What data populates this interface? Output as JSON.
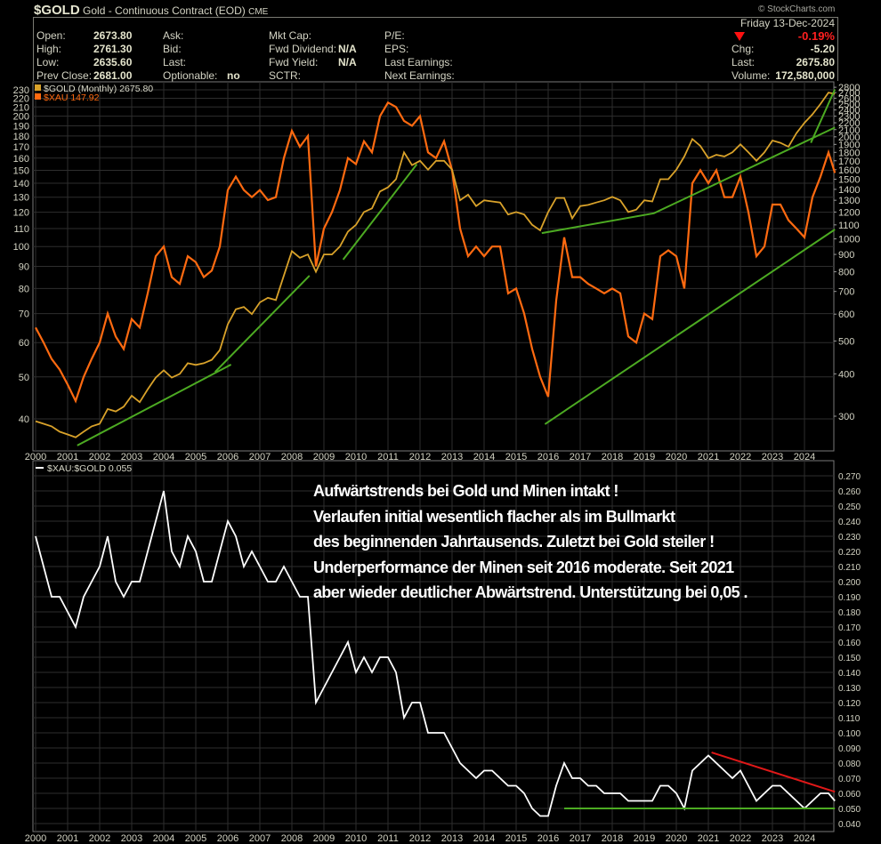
{
  "header": {
    "symbol": "$GOLD",
    "name": "Gold - Continuous Contract (EOD)",
    "exchange": "CME",
    "copyright": "© StockCharts.com",
    "date": "Friday  13-Dec-2024",
    "change_pct": "-0.19%",
    "direction_icon": "down-triangle-icon",
    "fields": {
      "open_label": "Open:",
      "open": "2673.80",
      "high_label": "High:",
      "high": "2761.30",
      "low_label": "Low:",
      "low": "2635.60",
      "prev_close_label": "Prev Close:",
      "prev_close": "2681.00",
      "ask_label": "Ask:",
      "bid_label": "Bid:",
      "last_mid_label": "Last:",
      "optionable_label": "Optionable:",
      "optionable": "no",
      "mkt_cap_label": "Mkt Cap:",
      "fwd_dividend_label": "Fwd Dividend:",
      "fwd_dividend": "N/A",
      "fwd_yield_label": "Fwd Yield:",
      "fwd_yield": "N/A",
      "sctr_label": "SCTR:",
      "pe_label": "P/E:",
      "eps_label": "EPS:",
      "last_earnings_label": "Last Earnings:",
      "next_earnings_label": "Next Earnings:",
      "chg_label": "Chg:",
      "chg": "-5.20",
      "last_label": "Last:",
      "last": "2675.80",
      "volume_label": "Volume:",
      "volume": "172,580,000"
    }
  },
  "annotation": [
    "Aufwärtstrends bei Gold und Minen intakt !",
    "Verlaufen initial wesentlich flacher als im Bullmarkt",
    "des beginnenden Jahrtausends. Zuletzt bei Gold steiler  !",
    "Underperformance der Minen seit 2016 moderate. Seit 2021",
    "aber wieder deutlicher Abwärtstrend. Unterstützung bei 0,05 ."
  ],
  "colors": {
    "gold": "#d9a22a",
    "xau": "#ff6a10",
    "ratio": "#ffffff",
    "trend_green": "#4caa22",
    "trend_red": "#e01818",
    "grid": "#2e2e2e",
    "axis_text": "#d4d4c4"
  },
  "chart_data": [
    {
      "type": "line",
      "title": "$GOLD (Monthly) 2675.80 / $XAU 147.92",
      "scale": "log",
      "x_tick_labels": [
        "2000",
        "2001",
        "2002",
        "2003",
        "2004",
        "2005",
        "2006",
        "2007",
        "2008",
        "2009",
        "2010",
        "2011",
        "2012",
        "2013",
        "2014",
        "2015",
        "2016",
        "2017",
        "2018",
        "2019",
        "2020",
        "2021",
        "2022",
        "2023",
        "2024"
      ],
      "left_axis": {
        "series": "$XAU",
        "ylim": [
          36,
          235
        ],
        "ticks": [
          40,
          50,
          60,
          70,
          80,
          90,
          100,
          110,
          120,
          130,
          140,
          150,
          160,
          170,
          180,
          190,
          200,
          210,
          220,
          230
        ]
      },
      "right_axis": {
        "series": "$GOLD",
        "ylim": [
          255,
          2900
        ],
        "ticks": [
          300,
          400,
          500,
          600,
          700,
          800,
          900,
          1000,
          1100,
          1200,
          1300,
          1400,
          1500,
          1600,
          1700,
          1800,
          1900,
          2000,
          2100,
          2200,
          2300,
          2400,
          2500,
          2600,
          2700,
          2800
        ]
      },
      "legend": [
        {
          "label": "$GOLD (Monthly) 2675.80",
          "color": "#d9a22a"
        },
        {
          "label": "$XAU 147.92",
          "color": "#ff6a10"
        }
      ],
      "legend_placement": "top-left",
      "grid": true,
      "x": [
        2000,
        2000.25,
        2000.5,
        2000.75,
        2001,
        2001.25,
        2001.5,
        2001.75,
        2002,
        2002.25,
        2002.5,
        2002.75,
        2003,
        2003.25,
        2003.5,
        2003.75,
        2004,
        2004.25,
        2004.5,
        2004.75,
        2005,
        2005.25,
        2005.5,
        2005.75,
        2006,
        2006.25,
        2006.5,
        2006.75,
        2007,
        2007.25,
        2007.5,
        2007.75,
        2008,
        2008.25,
        2008.5,
        2008.75,
        2009,
        2009.25,
        2009.5,
        2009.75,
        2010,
        2010.25,
        2010.5,
        2010.75,
        2011,
        2011.25,
        2011.5,
        2011.75,
        2012,
        2012.25,
        2012.5,
        2012.75,
        2013,
        2013.25,
        2013.5,
        2013.75,
        2014,
        2014.25,
        2014.5,
        2014.75,
        2015,
        2015.25,
        2015.5,
        2015.75,
        2016,
        2016.25,
        2016.5,
        2016.75,
        2017,
        2017.25,
        2017.5,
        2017.75,
        2018,
        2018.25,
        2018.5,
        2018.75,
        2019,
        2019.25,
        2019.5,
        2019.75,
        2020,
        2020.25,
        2020.5,
        2020.75,
        2021,
        2021.25,
        2021.5,
        2021.75,
        2022,
        2022.25,
        2022.5,
        2022.75,
        2023,
        2023.25,
        2023.5,
        2023.75,
        2024,
        2024.25,
        2024.5,
        2024.75,
        2024.95
      ],
      "series": [
        {
          "name": "$GOLD",
          "axis": "right",
          "values": [
            290,
            285,
            280,
            270,
            265,
            260,
            270,
            280,
            285,
            315,
            310,
            320,
            345,
            330,
            360,
            390,
            410,
            390,
            400,
            430,
            425,
            430,
            440,
            470,
            560,
            620,
            630,
            600,
            650,
            670,
            660,
            780,
            920,
            880,
            900,
            800,
            900,
            900,
            950,
            1050,
            1100,
            1200,
            1230,
            1380,
            1420,
            1500,
            1800,
            1650,
            1700,
            1600,
            1700,
            1700,
            1600,
            1300,
            1350,
            1250,
            1300,
            1290,
            1280,
            1180,
            1200,
            1180,
            1100,
            1060,
            1200,
            1320,
            1320,
            1150,
            1250,
            1260,
            1280,
            1300,
            1330,
            1300,
            1200,
            1220,
            1300,
            1290,
            1500,
            1500,
            1600,
            1750,
            1970,
            1880,
            1730,
            1770,
            1750,
            1800,
            1900,
            1800,
            1700,
            1800,
            1950,
            1920,
            1870,
            2050,
            2200,
            2330,
            2500,
            2700,
            2675.8
          ]
        },
        {
          "name": "$XAU",
          "axis": "left",
          "values": [
            65,
            60,
            55,
            52,
            48,
            44,
            50,
            55,
            60,
            70,
            62,
            58,
            68,
            65,
            78,
            95,
            100,
            85,
            82,
            95,
            92,
            85,
            88,
            100,
            135,
            145,
            135,
            130,
            135,
            128,
            130,
            160,
            185,
            170,
            180,
            90,
            110,
            120,
            135,
            160,
            155,
            175,
            165,
            200,
            215,
            210,
            195,
            190,
            200,
            165,
            160,
            175,
            150,
            110,
            95,
            100,
            95,
            100,
            100,
            78,
            80,
            70,
            58,
            50,
            45,
            75,
            105,
            85,
            85,
            82,
            80,
            78,
            80,
            78,
            62,
            60,
            70,
            68,
            95,
            98,
            95,
            80,
            140,
            150,
            140,
            150,
            130,
            130,
            145,
            120,
            95,
            100,
            125,
            125,
            115,
            110,
            105,
            130,
            145,
            165,
            147.92
          ]
        }
      ],
      "trendlines": [
        {
          "axis": "right",
          "points": [
            [
              2001.3,
              246
            ],
            [
              2006.1,
              426
            ]
          ]
        },
        {
          "axis": "right",
          "points": [
            [
              2005.6,
              405
            ],
            [
              2008.55,
              779
            ]
          ]
        },
        {
          "axis": "right",
          "points": [
            [
              2009.6,
              869
            ],
            [
              2011.9,
              1660
            ]
          ]
        },
        {
          "axis": "right",
          "points": [
            [
              2015.8,
              1040
            ],
            [
              2019.3,
              1190
            ],
            [
              2024.95,
              2130
            ]
          ]
        },
        {
          "axis": "right",
          "points": [
            [
              2024.2,
              1920
            ],
            [
              2024.95,
              2760
            ]
          ]
        },
        {
          "axis": "left",
          "points": [
            [
              2015.9,
              38.9
            ],
            [
              2024.95,
              109.5
            ]
          ]
        }
      ]
    },
    {
      "type": "line",
      "title": "$XAU:$GOLD 0.055",
      "legend": [
        {
          "label": "$XAU:$GOLD 0.055",
          "color": "#ffffff"
        }
      ],
      "legend_placement": "top-left",
      "grid": true,
      "ylim": [
        0.035,
        0.275
      ],
      "y_ticks": [
        "0.270",
        "0.260",
        "0.250",
        "0.240",
        "0.230",
        "0.220",
        "0.210",
        "0.200",
        "0.190",
        "0.180",
        "0.170",
        "0.160",
        "0.150",
        "0.140",
        "0.130",
        "0.120",
        "0.110",
        "0.100",
        "0.090",
        "0.080",
        "0.070",
        "0.060",
        "0.050",
        "0.040"
      ],
      "x_tick_labels": [
        "2000",
        "2001",
        "2002",
        "2003",
        "2004",
        "2005",
        "2006",
        "2007",
        "2008",
        "2009",
        "2010",
        "2011",
        "2012",
        "2013",
        "2014",
        "2015",
        "2016",
        "2017",
        "2018",
        "2019",
        "2020",
        "2021",
        "2022",
        "2023",
        "2024"
      ],
      "series": [
        {
          "name": "$XAU:$GOLD",
          "values": [
            0.23,
            0.21,
            0.19,
            0.19,
            0.18,
            0.17,
            0.19,
            0.2,
            0.21,
            0.23,
            0.2,
            0.19,
            0.2,
            0.2,
            0.22,
            0.24,
            0.26,
            0.22,
            0.21,
            0.23,
            0.22,
            0.2,
            0.2,
            0.22,
            0.24,
            0.23,
            0.21,
            0.22,
            0.21,
            0.2,
            0.2,
            0.21,
            0.2,
            0.19,
            0.19,
            0.12,
            0.13,
            0.14,
            0.15,
            0.16,
            0.14,
            0.15,
            0.14,
            0.15,
            0.15,
            0.14,
            0.11,
            0.12,
            0.12,
            0.1,
            0.1,
            0.1,
            0.09,
            0.08,
            0.075,
            0.07,
            0.075,
            0.075,
            0.07,
            0.065,
            0.065,
            0.06,
            0.05,
            0.045,
            0.045,
            0.065,
            0.08,
            0.07,
            0.07,
            0.065,
            0.065,
            0.06,
            0.06,
            0.06,
            0.055,
            0.055,
            0.055,
            0.055,
            0.065,
            0.065,
            0.06,
            0.05,
            0.075,
            0.08,
            0.085,
            0.08,
            0.075,
            0.07,
            0.075,
            0.065,
            0.055,
            0.06,
            0.065,
            0.065,
            0.06,
            0.055,
            0.05,
            0.055,
            0.06,
            0.06,
            0.055
          ]
        }
      ],
      "trendlines": [
        {
          "color": "red",
          "points": [
            [
              2021.1,
              0.087
            ],
            [
              2024.95,
              0.061
            ]
          ]
        },
        {
          "color": "green",
          "points": [
            [
              2016.5,
              0.05
            ],
            [
              2024.95,
              0.05
            ]
          ]
        }
      ]
    }
  ]
}
